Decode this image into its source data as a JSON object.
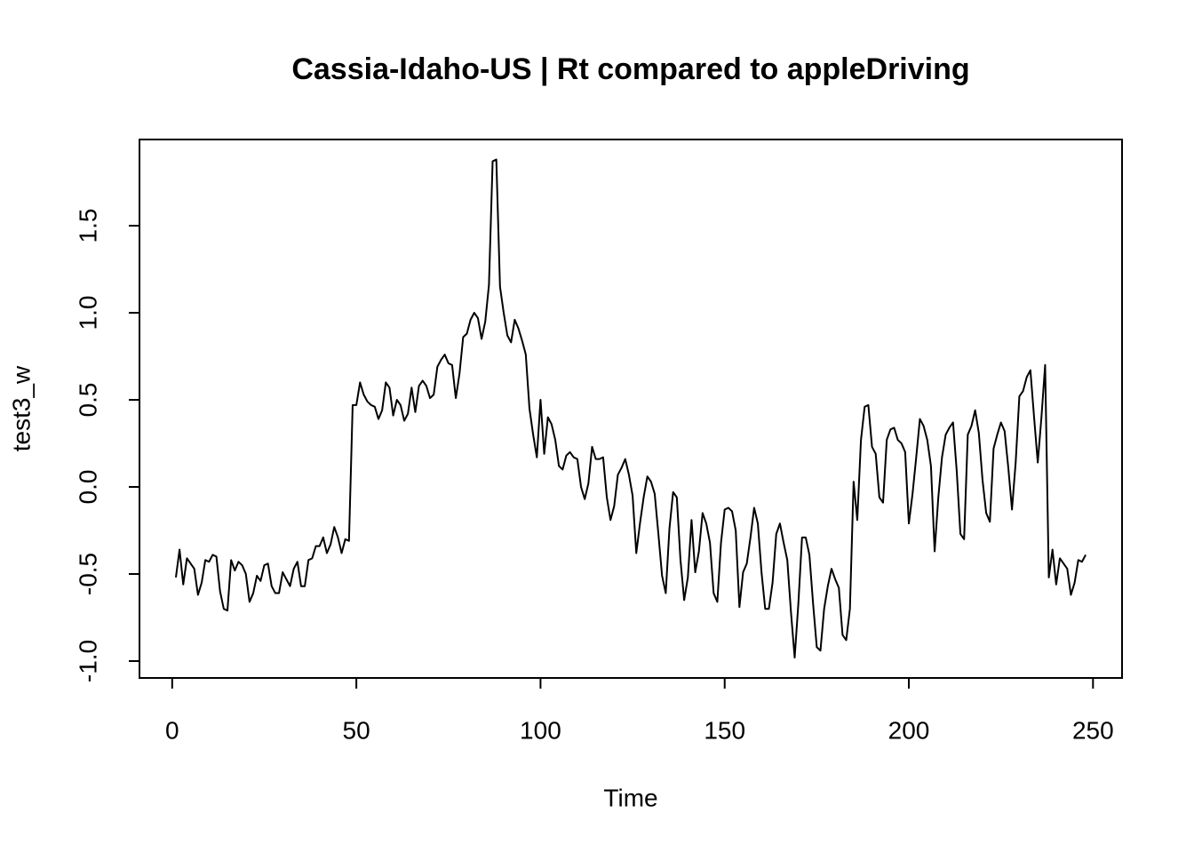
{
  "chart_data": {
    "type": "line",
    "title": "Cassia-Idaho-US | Rt compared to appleDriving",
    "x_label": "Time",
    "y_label": "test3_w",
    "x": [
      1,
      2,
      3,
      4,
      5,
      6,
      7,
      8,
      9,
      10,
      11,
      12,
      13,
      14,
      15,
      16,
      17,
      18,
      19,
      20,
      21,
      22,
      23,
      24,
      25,
      26,
      27,
      28,
      29,
      30,
      31,
      32,
      33,
      34,
      35,
      36,
      37,
      38,
      39,
      40,
      41,
      42,
      43,
      44,
      45,
      46,
      47,
      48,
      49,
      50,
      51,
      52,
      53,
      54,
      55,
      56,
      57,
      58,
      59,
      60,
      61,
      62,
      63,
      64,
      65,
      66,
      67,
      68,
      69,
      70,
      71,
      72,
      73,
      74,
      75,
      76,
      77,
      78,
      79,
      80,
      81,
      82,
      83,
      84,
      85,
      86,
      87,
      88,
      89,
      90,
      91,
      92,
      93,
      94,
      95,
      96,
      97,
      98,
      99,
      100,
      101,
      102,
      103,
      104,
      105,
      106,
      107,
      108,
      109,
      110,
      111,
      112,
      113,
      114,
      115,
      116,
      117,
      118,
      119,
      120,
      121,
      122,
      123,
      124,
      125,
      126,
      127,
      128,
      129,
      130,
      131,
      132,
      133,
      134,
      135,
      136,
      137,
      138,
      139,
      140,
      141,
      142,
      143,
      144,
      145,
      146,
      147,
      148,
      149,
      150,
      151,
      152,
      153,
      154,
      155,
      156,
      157,
      158,
      159,
      160,
      161,
      162,
      163,
      164,
      165,
      166,
      167,
      168,
      169,
      170,
      171,
      172,
      173,
      174,
      175,
      176,
      177,
      178,
      179,
      180,
      181,
      182,
      183,
      184,
      185,
      186,
      187,
      188,
      189,
      190,
      191,
      192,
      193,
      194,
      195,
      196,
      197,
      198,
      199,
      200,
      201,
      202,
      203,
      204,
      205,
      206,
      207,
      208,
      209,
      210,
      211,
      212,
      213,
      214,
      215,
      216,
      217,
      218,
      219,
      220,
      221,
      222,
      223,
      224,
      225,
      226,
      227,
      228,
      229,
      230,
      231,
      232,
      233,
      234,
      235,
      236,
      237,
      238,
      239,
      240,
      241,
      242,
      243,
      244,
      245,
      246,
      247,
      248
    ],
    "series": [
      {
        "name": "test3_w",
        "color": "#000000",
        "values": [
          -0.52,
          -0.36,
          -0.56,
          -0.41,
          -0.44,
          -0.47,
          -0.62,
          -0.55,
          -0.42,
          -0.43,
          -0.39,
          -0.4,
          -0.6,
          -0.7,
          -0.71,
          -0.42,
          -0.48,
          -0.43,
          -0.45,
          -0.5,
          -0.66,
          -0.61,
          -0.51,
          -0.54,
          -0.45,
          -0.44,
          -0.57,
          -0.61,
          -0.61,
          -0.49,
          -0.53,
          -0.57,
          -0.47,
          -0.43,
          -0.57,
          -0.57,
          -0.42,
          -0.41,
          -0.34,
          -0.34,
          -0.29,
          -0.38,
          -0.33,
          -0.23,
          -0.29,
          -0.38,
          -0.3,
          -0.31,
          0.47,
          0.47,
          0.6,
          0.53,
          0.49,
          0.47,
          0.46,
          0.39,
          0.44,
          0.6,
          0.57,
          0.41,
          0.5,
          0.47,
          0.38,
          0.42,
          0.57,
          0.43,
          0.58,
          0.61,
          0.58,
          0.51,
          0.53,
          0.69,
          0.73,
          0.76,
          0.71,
          0.7,
          0.51,
          0.65,
          0.86,
          0.88,
          0.96,
          1.0,
          0.97,
          0.85,
          0.95,
          1.16,
          1.87,
          1.88,
          1.15,
          1.0,
          0.87,
          0.83,
          0.96,
          0.91,
          0.84,
          0.76,
          0.45,
          0.3,
          0.17,
          0.5,
          0.19,
          0.4,
          0.36,
          0.27,
          0.12,
          0.1,
          0.18,
          0.2,
          0.17,
          0.16,
          0.0,
          -0.07,
          0.02,
          0.23,
          0.16,
          0.16,
          0.17,
          -0.06,
          -0.19,
          -0.11,
          0.07,
          0.11,
          0.16,
          0.07,
          -0.05,
          -0.38,
          -0.21,
          -0.06,
          0.06,
          0.03,
          -0.04,
          -0.27,
          -0.51,
          -0.61,
          -0.24,
          -0.03,
          -0.06,
          -0.42,
          -0.65,
          -0.52,
          -0.19,
          -0.49,
          -0.37,
          -0.15,
          -0.21,
          -0.32,
          -0.61,
          -0.66,
          -0.32,
          -0.13,
          -0.12,
          -0.14,
          -0.25,
          -0.69,
          -0.49,
          -0.44,
          -0.29,
          -0.12,
          -0.21,
          -0.49,
          -0.7,
          -0.7,
          -0.55,
          -0.27,
          -0.21,
          -0.32,
          -0.42,
          -0.72,
          -0.98,
          -0.67,
          -0.29,
          -0.29,
          -0.39,
          -0.67,
          -0.92,
          -0.94,
          -0.7,
          -0.57,
          -0.47,
          -0.53,
          -0.58,
          -0.85,
          -0.88,
          -0.7,
          0.03,
          -0.19,
          0.27,
          0.46,
          0.47,
          0.23,
          0.19,
          -0.06,
          -0.09,
          0.27,
          0.33,
          0.34,
          0.27,
          0.25,
          0.2,
          -0.21,
          -0.04,
          0.17,
          0.39,
          0.35,
          0.27,
          0.12,
          -0.37,
          -0.06,
          0.17,
          0.3,
          0.34,
          0.37,
          0.09,
          -0.27,
          -0.3,
          0.3,
          0.35,
          0.44,
          0.31,
          0.04,
          -0.15,
          -0.2,
          0.22,
          0.3,
          0.37,
          0.32,
          0.11,
          -0.13,
          0.14,
          0.52,
          0.55,
          0.63,
          0.67,
          0.4,
          0.14,
          0.4,
          0.7,
          -0.52,
          -0.36,
          -0.56,
          -0.41,
          -0.44,
          -0.47,
          -0.62,
          -0.55,
          -0.42,
          -0.43,
          -0.39
        ]
      }
    ],
    "xlim": [
      -8.88,
      257.88
    ],
    "xticks": [
      0,
      50,
      100,
      150,
      200,
      250
    ],
    "ylim": [
      -1.097,
      1.995
    ],
    "yticks": [
      {
        "value": -1.0,
        "label": "-1.0"
      },
      -0.5,
      {
        "value": 0,
        "label": "0.0"
      },
      0.5,
      {
        "value": 1.0,
        "label": "1.0"
      },
      1.5
    ],
    "grid": false
  }
}
